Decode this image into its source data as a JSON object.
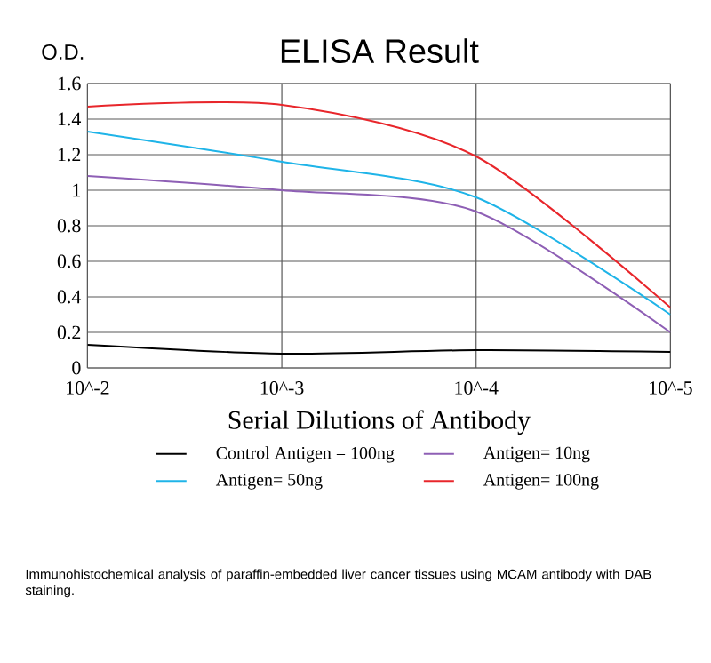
{
  "chart_data": {
    "type": "line",
    "title": "ELISA Result",
    "ylabel": "O.D.",
    "xlabel": "Serial Dilutions  of Antibody",
    "categories": [
      "10^-2",
      "10^-3",
      "10^-4",
      "10^-5"
    ],
    "series": [
      {
        "name": "Control Antigen = 100ng",
        "color": "#000000",
        "values": [
          0.13,
          0.08,
          0.1,
          0.09
        ]
      },
      {
        "name": "Antigen= 10ng",
        "color": "#8e5fb5",
        "values": [
          1.08,
          1.0,
          0.88,
          0.2
        ]
      },
      {
        "name": "Antigen= 50ng",
        "color": "#1fb4e8",
        "values": [
          1.33,
          1.16,
          0.96,
          0.3
        ]
      },
      {
        "name": "Antigen= 100ng",
        "color": "#e8262b",
        "values": [
          1.47,
          1.48,
          1.19,
          0.34
        ]
      }
    ],
    "ylim": [
      0,
      1.6
    ],
    "yticks": [
      0,
      0.2,
      0.4,
      0.6,
      0.8,
      1,
      1.2,
      1.4,
      1.6
    ],
    "grid": true,
    "legend": "bottom",
    "marker": "none",
    "line_style": "solid",
    "annotations": [
      "Immunohistochemical analysis of paraffin-embedded liver cancer tissues using MCAM antibody with DAB staining."
    ]
  }
}
